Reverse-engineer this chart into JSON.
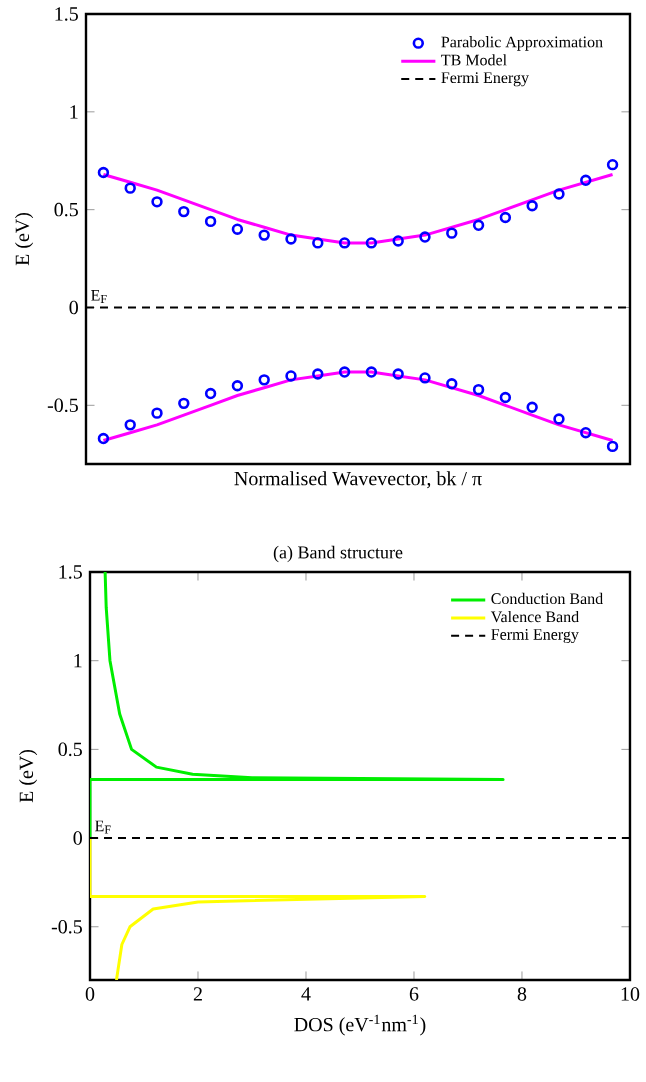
{
  "chart_data": [
    {
      "type": "line",
      "xlabel": "Normalised Wavevector,     bk / π",
      "ylabel": "E (eV)",
      "categories": [
        null,
        null,
        null,
        null,
        null,
        null,
        null,
        null,
        null,
        null,
        null,
        null,
        null,
        null,
        null,
        null,
        null,
        null,
        null,
        null
      ],
      "ylim": [
        -0.8,
        1.5
      ],
      "yticks": [
        -0.5,
        0,
        0.5,
        1,
        1.5
      ],
      "legend": "top right",
      "series": [
        {
          "name": "Parabolic Approximation",
          "type": "scatter",
          "marker": "circle",
          "color": "#0000ff",
          "values": [
            0.69,
            0.61,
            0.54,
            0.49,
            0.44,
            0.4,
            0.37,
            0.35,
            0.33,
            0.33,
            0.33,
            0.34,
            0.36,
            0.38,
            0.42,
            0.46,
            0.52,
            0.58,
            0.65,
            0.73
          ]
        },
        {
          "type": "scatter",
          "marker": "circle",
          "color": "#0000ff",
          "values": [
            -0.67,
            -0.6,
            -0.54,
            -0.49,
            -0.44,
            -0.4,
            -0.37,
            -0.35,
            -0.34,
            -0.33,
            -0.33,
            -0.34,
            -0.36,
            -0.39,
            -0.42,
            -0.46,
            -0.51,
            -0.57,
            -0.64,
            -0.71
          ]
        },
        {
          "name": "TB Model",
          "type": "line",
          "color": "#ff00ff",
          "values": [
            0.68,
            0.64,
            0.6,
            0.55,
            0.5,
            0.45,
            0.41,
            0.37,
            0.35,
            0.33,
            0.33,
            0.35,
            0.37,
            0.41,
            0.45,
            0.5,
            0.55,
            0.6,
            0.64,
            0.68
          ]
        },
        {
          "type": "line",
          "color": "#ff00ff",
          "values": [
            -0.68,
            -0.64,
            -0.6,
            -0.55,
            -0.5,
            -0.45,
            -0.41,
            -0.37,
            -0.35,
            -0.33,
            -0.33,
            -0.35,
            -0.37,
            -0.41,
            -0.45,
            -0.5,
            -0.55,
            -0.6,
            -0.64,
            -0.68
          ]
        }
      ],
      "ref_lines": [
        {
          "axis": "y",
          "value": 0,
          "label": "Fermi Energy",
          "color": "#000000",
          "line_style": "dashed"
        }
      ],
      "annotations": [
        "E$_{F}$",
        "(a) Band structure"
      ]
    },
    {
      "type": "line",
      "xlabel": "DOS (eV$^{-1}$nm$^{-1}$)",
      "ylabel": "E (eV)",
      "xlim": [
        0,
        10
      ],
      "xticks": [
        0,
        2,
        4,
        6,
        8,
        10
      ],
      "ylim": [
        -0.8,
        1.5
      ],
      "yticks": [
        -0.5,
        0,
        0.5,
        1,
        1.5
      ],
      "legend": "top right",
      "series": [
        {
          "name": "Conduction Band",
          "color": "#00ee00",
          "x": [
            0,
            0,
            7.65,
            3,
            1.9,
            1.23,
            0.77,
            0.55,
            0.37,
            0.3,
            0.28
          ],
          "values": [
            0,
            0.33,
            0.33,
            0.34,
            0.36,
            0.4,
            0.5,
            0.7,
            1.0,
            1.3,
            1.5
          ]
        },
        {
          "name": "Valence Band",
          "color": "#ffff00",
          "x": [
            0,
            0,
            6.2,
            2.0,
            1.17,
            0.74,
            0.59,
            0.49
          ],
          "values": [
            0,
            -0.33,
            -0.33,
            -0.36,
            -0.4,
            -0.5,
            -0.6,
            -0.8
          ]
        }
      ],
      "ref_lines": [
        {
          "axis": "y",
          "value": 0,
          "label": "Fermi Energy",
          "color": "#000000",
          "line_style": "dashed"
        }
      ],
      "annotations": [
        "E$_{F}$"
      ]
    }
  ]
}
